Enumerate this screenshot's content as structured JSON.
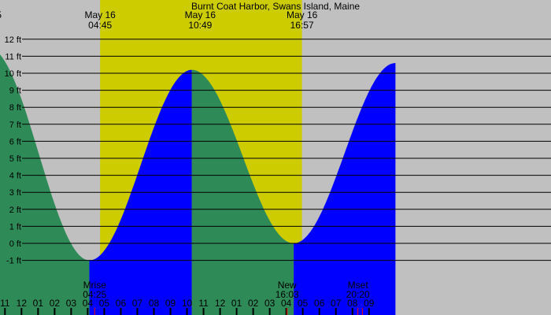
{
  "chart_data": {
    "type": "area",
    "title": "Burnt Coat Harbor, Swans Island, Maine",
    "xlabel": "",
    "ylabel": "",
    "x_unit": "hours (clock hours, from 23:00 May 15 through 09:00 May 17)",
    "xlim": [
      -0.3,
      33.0
    ],
    "ylim": [
      -1.6,
      13.0
    ],
    "grid": true,
    "y_ticks": [
      {
        "value": 12,
        "label": "12 ft"
      },
      {
        "value": 11,
        "label": "11 ft"
      },
      {
        "value": 10,
        "label": "10 ft"
      },
      {
        "value": 9,
        "label": "9 ft"
      },
      {
        "value": 8,
        "label": "8 ft"
      },
      {
        "value": 7,
        "label": "7 ft"
      },
      {
        "value": 6,
        "label": "6 ft"
      },
      {
        "value": 5,
        "label": "5 ft"
      },
      {
        "value": 4,
        "label": "4 ft"
      },
      {
        "value": 3,
        "label": "3 ft"
      },
      {
        "value": 2,
        "label": "2 ft"
      },
      {
        "value": 1,
        "label": "1 ft"
      },
      {
        "value": 0,
        "label": "0 ft"
      },
      {
        "value": -1,
        "label": "-1 ft"
      }
    ],
    "x_ticks": [
      "11",
      "12",
      "01",
      "02",
      "03",
      "04",
      "05",
      "06",
      "07",
      "08",
      "09",
      "10",
      "11",
      "12",
      "01",
      "02",
      "03",
      "04",
      "05",
      "06",
      "07",
      "08",
      "09"
    ],
    "daylight": {
      "start": 5.75,
      "end": 17.95
    },
    "tide_extremes": [
      {
        "time": -1.0,
        "height": 11.5,
        "type": "high"
      },
      {
        "time": 5.1,
        "height": -1.0,
        "type": "low"
      },
      {
        "time": 11.3,
        "height": 10.2,
        "type": "high"
      },
      {
        "time": 17.45,
        "height": 0.0,
        "type": "low"
      },
      {
        "time": 23.6,
        "height": 10.6,
        "type": "high"
      }
    ],
    "current_time": 11.3,
    "top_labels": [
      {
        "date": "May 16",
        "time": "04:45",
        "x": 5.75
      },
      {
        "date": "May 16",
        "time": "10:49",
        "x": 11.8
      },
      {
        "date": "May 16",
        "time": "16:57",
        "x": 17.95
      }
    ],
    "cut_left_label": "5",
    "bottom_labels": [
      {
        "name": "Mrise",
        "time": "04:25",
        "x": 5.42
      },
      {
        "name": "New",
        "time": "16:03",
        "x": 17.05
      },
      {
        "name": "Mset",
        "time": "20:20",
        "x": 21.33
      }
    ],
    "markers": [
      {
        "x": 5.42,
        "color": "#ff0000"
      },
      {
        "x": 17.05,
        "color": "#ff0000"
      },
      {
        "x": 21.33,
        "color": "#ff0000"
      },
      {
        "x": 21.6,
        "color": "#ff0000"
      }
    ],
    "colors": {
      "night": "#c0c0c0",
      "day": "#cccc00",
      "falling": "#2e8b57",
      "rising": "#0000ff",
      "grid": "#000000"
    }
  }
}
